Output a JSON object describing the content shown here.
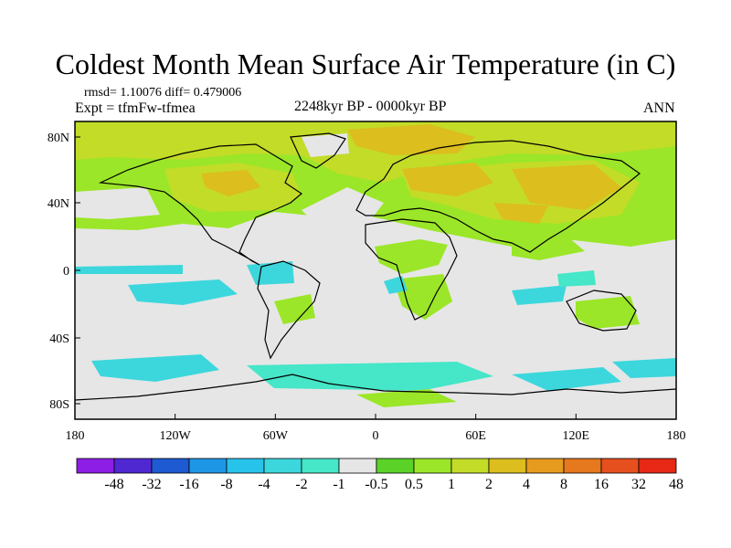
{
  "title": "Coldest Month Mean Surface Air Temperature (in C)",
  "stats": {
    "rmsd_diff": "rmsd= 1.10076 diff= 0.479006",
    "expt": "Expt = tfmFw-tfmea",
    "period": "2248kyr BP - 0000kyr BP",
    "season": "ANN"
  },
  "axes": {
    "lat_ticks": [
      "80N",
      "40N",
      "0",
      "40S",
      "80S"
    ],
    "lon_ticks": [
      "180",
      "120W",
      "60W",
      "0",
      "60E",
      "120E",
      "180"
    ]
  },
  "legend": {
    "colors": [
      "#8c1ee6",
      "#5028d2",
      "#1e5ad2",
      "#1e96e6",
      "#28c3eb",
      "#3cd7dc",
      "#46e6c8",
      "#e6e6e6",
      "#5ad228",
      "#9be628",
      "#c3dc28",
      "#dcbe1e",
      "#e69b1e",
      "#e6781e",
      "#e6501e",
      "#e62814"
    ],
    "labels": [
      "-48",
      "-32",
      "-16",
      "-8",
      "-4",
      "-2",
      "-1",
      "-0.5",
      "0.5",
      "1",
      "2",
      "4",
      "8",
      "16",
      "32",
      "48"
    ]
  },
  "palette": {
    "neutral": "#e6e6e6",
    "light_green": "#9be628",
    "yellow_green": "#c3dc28",
    "orange": "#dcbe1e",
    "cyan": "#3cd7dc",
    "aqua": "#46e6c8",
    "coast": "#000000"
  }
}
